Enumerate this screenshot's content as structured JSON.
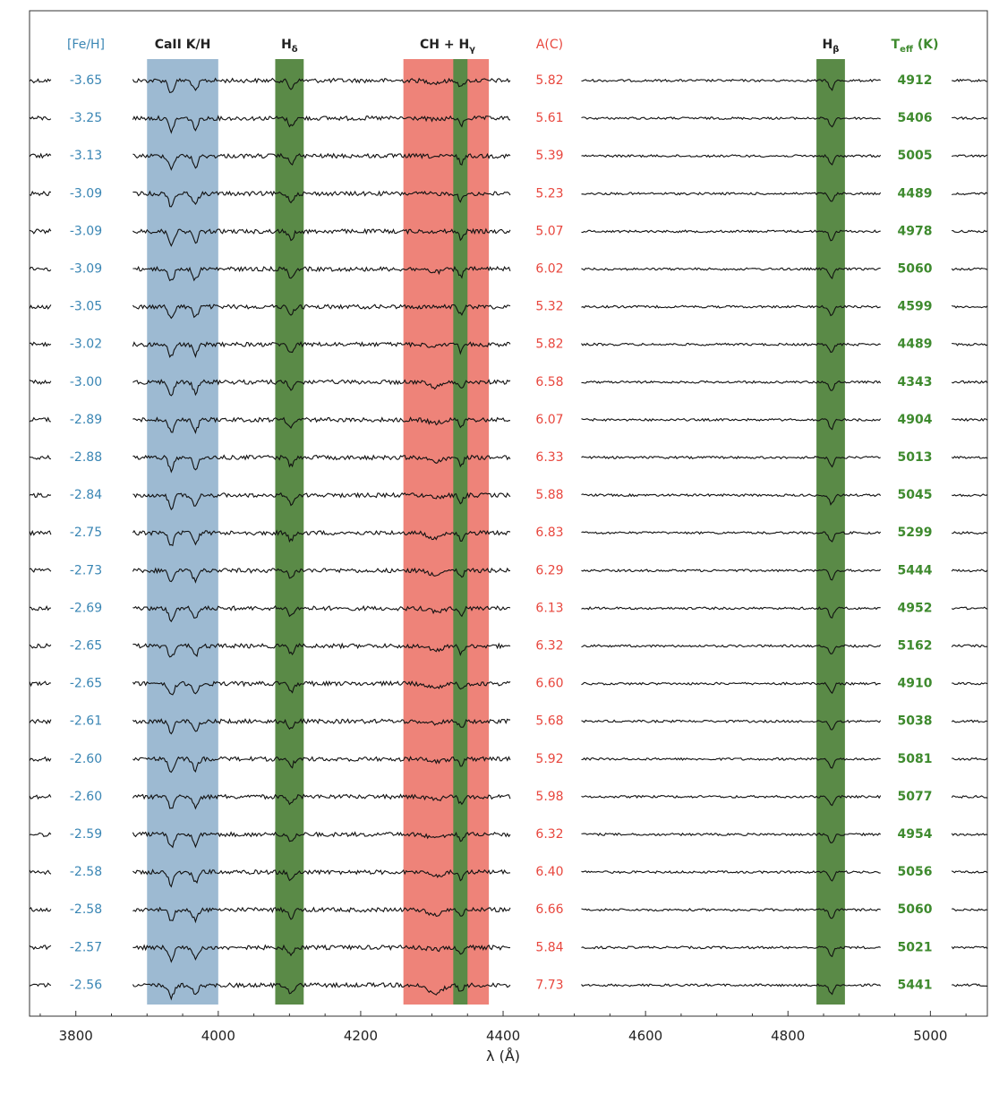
{
  "colors": {
    "feh": "#3a86b4",
    "carbon": "#e8473e",
    "teff": "#3e8a2e",
    "band_ca": "#9dbad2",
    "band_h": "#5a8a47",
    "band_ch": "#ee8379",
    "spectrum": "#111111"
  },
  "chart_data": {
    "type": "line",
    "xlabel": "λ (Å)",
    "xlim": [
      3735,
      5080
    ],
    "xticks": [
      3800,
      4000,
      4200,
      4400,
      4600,
      4800,
      5000
    ],
    "headers": {
      "feh": "[Fe/H]",
      "ca": "CaII K/H",
      "hdelta": "H",
      "hdelta_sub": "δ",
      "ch": "CH + H",
      "ch_sub": "γ",
      "ac": "A(C)",
      "hbeta": "H",
      "hbeta_sub": "β",
      "teff": "T",
      "teff_sub": "eff",
      "teff_unit": " (K)"
    },
    "bands": [
      {
        "name": "CaII K/H",
        "range": [
          3900,
          4000
        ],
        "color": "band_ca"
      },
      {
        "name": "Hδ",
        "range": [
          4080,
          4120
        ],
        "color": "band_h"
      },
      {
        "name": "CH G-band",
        "range": [
          4260,
          4380
        ],
        "color": "band_ch"
      },
      {
        "name": "Hγ",
        "range": [
          4330,
          4350
        ],
        "color": "band_h"
      },
      {
        "name": "Hβ",
        "range": [
          4840,
          4880
        ],
        "color": "band_h"
      }
    ],
    "spectra_segments": [
      [
        3735,
        3765
      ],
      [
        3880,
        4410
      ],
      [
        4510,
        4930
      ],
      [
        5030,
        5080
      ]
    ],
    "stars": [
      {
        "feh": "-3.65",
        "ac": "5.82",
        "teff": "4912"
      },
      {
        "feh": "-3.25",
        "ac": "5.61",
        "teff": "5406"
      },
      {
        "feh": "-3.13",
        "ac": "5.39",
        "teff": "5005"
      },
      {
        "feh": "-3.09",
        "ac": "5.23",
        "teff": "4489"
      },
      {
        "feh": "-3.09",
        "ac": "5.07",
        "teff": "4978"
      },
      {
        "feh": "-3.09",
        "ac": "6.02",
        "teff": "5060"
      },
      {
        "feh": "-3.05",
        "ac": "5.32",
        "teff": "4599"
      },
      {
        "feh": "-3.02",
        "ac": "5.82",
        "teff": "4489"
      },
      {
        "feh": "-3.00",
        "ac": "6.58",
        "teff": "4343"
      },
      {
        "feh": "-2.89",
        "ac": "6.07",
        "teff": "4904"
      },
      {
        "feh": "-2.88",
        "ac": "6.33",
        "teff": "5013"
      },
      {
        "feh": "-2.84",
        "ac": "5.88",
        "teff": "5045"
      },
      {
        "feh": "-2.75",
        "ac": "6.83",
        "teff": "5299"
      },
      {
        "feh": "-2.73",
        "ac": "6.29",
        "teff": "5444"
      },
      {
        "feh": "-2.69",
        "ac": "6.13",
        "teff": "4952"
      },
      {
        "feh": "-2.65",
        "ac": "6.32",
        "teff": "5162"
      },
      {
        "feh": "-2.65",
        "ac": "6.60",
        "teff": "4910"
      },
      {
        "feh": "-2.61",
        "ac": "5.68",
        "teff": "5038"
      },
      {
        "feh": "-2.60",
        "ac": "5.92",
        "teff": "5081"
      },
      {
        "feh": "-2.60",
        "ac": "5.98",
        "teff": "5077"
      },
      {
        "feh": "-2.59",
        "ac": "6.32",
        "teff": "4954"
      },
      {
        "feh": "-2.58",
        "ac": "6.40",
        "teff": "5056"
      },
      {
        "feh": "-2.58",
        "ac": "6.66",
        "teff": "5060"
      },
      {
        "feh": "-2.57",
        "ac": "5.84",
        "teff": "5021"
      },
      {
        "feh": "-2.56",
        "ac": "7.73",
        "teff": "5441"
      }
    ]
  }
}
